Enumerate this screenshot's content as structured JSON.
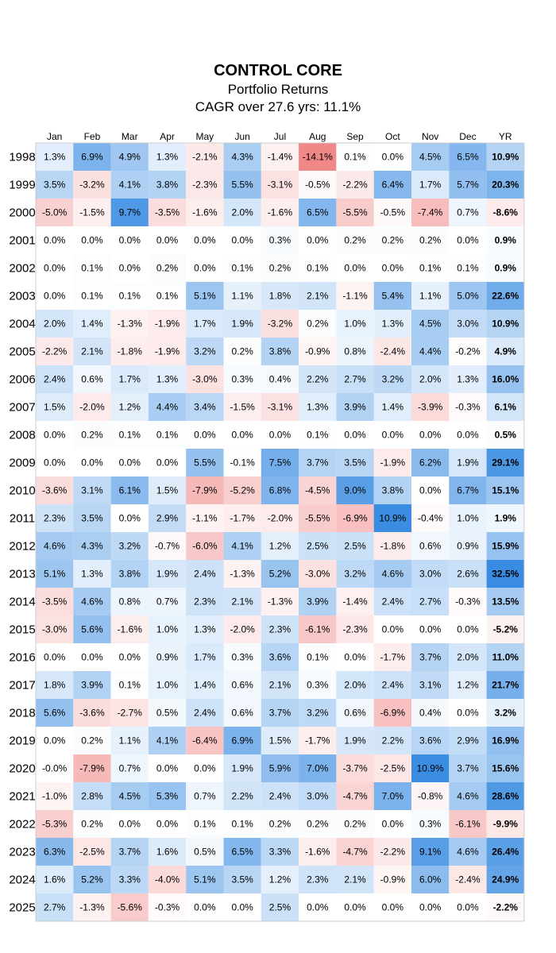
{
  "chart_data": {
    "type": "heatmap",
    "title": "CONTROL CORE",
    "subtitle": "Portfolio Returns",
    "subtitle2": "CAGR over 27.6 yrs: 11.1%",
    "columns": [
      "Jan",
      "Feb",
      "Mar",
      "Apr",
      "May",
      "Jun",
      "Jul",
      "Aug",
      "Sep",
      "Oct",
      "Nov",
      "Dec",
      "YR"
    ],
    "colors": {
      "positive": "#2f86e0",
      "negative": "#f08080",
      "border": "#cccccc"
    },
    "rows": [
      {
        "year": "1998",
        "values": [
          "1.3%",
          "6.9%",
          "4.9%",
          "1.3%",
          "-2.1%",
          "4.3%",
          "-1.4%",
          "-14.1%",
          "0.1%",
          "0.0%",
          "4.5%",
          "6.5%",
          "10.9%"
        ]
      },
      {
        "year": "1999",
        "values": [
          "3.5%",
          "-3.2%",
          "4.1%",
          "3.8%",
          "-2.3%",
          "5.5%",
          "-3.1%",
          "-0.5%",
          "-2.2%",
          "6.4%",
          "1.7%",
          "5.7%",
          "20.3%"
        ]
      },
      {
        "year": "2000",
        "values": [
          "-5.0%",
          "-1.5%",
          "9.7%",
          "-3.5%",
          "-1.6%",
          "2.0%",
          "-1.6%",
          "6.5%",
          "-5.5%",
          "-0.5%",
          "-7.4%",
          "0.7%",
          "-8.6%"
        ]
      },
      {
        "year": "2001",
        "values": [
          "0.0%",
          "0.0%",
          "0.0%",
          "0.0%",
          "0.0%",
          "0.0%",
          "0.3%",
          "0.0%",
          "0.2%",
          "0.2%",
          "0.2%",
          "0.0%",
          "0.9%"
        ]
      },
      {
        "year": "2002",
        "values": [
          "0.0%",
          "0.1%",
          "0.0%",
          "0.2%",
          "0.0%",
          "0.1%",
          "0.2%",
          "0.1%",
          "0.0%",
          "0.0%",
          "0.1%",
          "0.1%",
          "0.9%"
        ]
      },
      {
        "year": "2003",
        "values": [
          "0.0%",
          "0.1%",
          "0.1%",
          "0.1%",
          "5.1%",
          "1.1%",
          "1.8%",
          "2.1%",
          "-1.1%",
          "5.4%",
          "1.1%",
          "5.0%",
          "22.6%"
        ]
      },
      {
        "year": "2004",
        "values": [
          "2.0%",
          "1.4%",
          "-1.3%",
          "-1.9%",
          "1.7%",
          "1.9%",
          "-3.2%",
          "0.2%",
          "1.0%",
          "1.3%",
          "4.5%",
          "3.0%",
          "10.9%"
        ]
      },
      {
        "year": "2005",
        "values": [
          "-2.2%",
          "2.1%",
          "-1.8%",
          "-1.9%",
          "3.2%",
          "0.2%",
          "3.8%",
          "-0.9%",
          "0.8%",
          "-2.4%",
          "4.4%",
          "-0.2%",
          "4.9%"
        ]
      },
      {
        "year": "2006",
        "values": [
          "2.4%",
          "0.6%",
          "1.7%",
          "1.3%",
          "-3.0%",
          "0.3%",
          "0.4%",
          "2.2%",
          "2.7%",
          "3.2%",
          "2.0%",
          "1.3%",
          "16.0%"
        ]
      },
      {
        "year": "2007",
        "values": [
          "1.5%",
          "-2.0%",
          "1.2%",
          "4.4%",
          "3.4%",
          "-1.5%",
          "-3.1%",
          "1.3%",
          "3.9%",
          "1.4%",
          "-3.9%",
          "-0.3%",
          "6.1%"
        ]
      },
      {
        "year": "2008",
        "values": [
          "0.0%",
          "0.2%",
          "0.1%",
          "0.1%",
          "0.0%",
          "0.0%",
          "0.0%",
          "0.1%",
          "0.0%",
          "0.0%",
          "0.0%",
          "0.0%",
          "0.5%"
        ]
      },
      {
        "year": "2009",
        "values": [
          "0.0%",
          "0.0%",
          "0.0%",
          "0.0%",
          "5.5%",
          "-0.1%",
          "7.5%",
          "3.7%",
          "3.5%",
          "-1.9%",
          "6.2%",
          "1.9%",
          "29.1%"
        ]
      },
      {
        "year": "2010",
        "values": [
          "-3.6%",
          "3.1%",
          "6.1%",
          "1.5%",
          "-7.9%",
          "-5.2%",
          "6.8%",
          "-4.5%",
          "9.0%",
          "3.8%",
          "0.0%",
          "6.7%",
          "15.1%"
        ]
      },
      {
        "year": "2011",
        "values": [
          "2.3%",
          "3.5%",
          "0.0%",
          "2.9%",
          "-1.1%",
          "-1.7%",
          "-2.0%",
          "-5.5%",
          "-6.9%",
          "10.9%",
          "-0.4%",
          "1.0%",
          "1.9%"
        ]
      },
      {
        "year": "2012",
        "values": [
          "4.6%",
          "4.3%",
          "3.2%",
          "-0.7%",
          "-6.0%",
          "4.1%",
          "1.2%",
          "2.5%",
          "2.5%",
          "-1.8%",
          "0.6%",
          "0.9%",
          "15.9%"
        ]
      },
      {
        "year": "2013",
        "values": [
          "5.1%",
          "1.3%",
          "3.8%",
          "1.9%",
          "2.4%",
          "-1.3%",
          "5.2%",
          "-3.0%",
          "3.2%",
          "4.6%",
          "3.0%",
          "2.6%",
          "32.5%"
        ]
      },
      {
        "year": "2014",
        "values": [
          "-3.5%",
          "4.6%",
          "0.8%",
          "0.7%",
          "2.3%",
          "2.1%",
          "-1.3%",
          "3.9%",
          "-1.4%",
          "2.4%",
          "2.7%",
          "-0.3%",
          "13.5%"
        ]
      },
      {
        "year": "2015",
        "values": [
          "-3.0%",
          "5.6%",
          "-1.6%",
          "1.0%",
          "1.3%",
          "-2.0%",
          "2.3%",
          "-6.1%",
          "-2.3%",
          "0.0%",
          "0.0%",
          "0.0%",
          "-5.2%"
        ]
      },
      {
        "year": "2016",
        "values": [
          "0.0%",
          "0.0%",
          "0.0%",
          "0.9%",
          "1.7%",
          "0.3%",
          "3.6%",
          "0.1%",
          "0.0%",
          "-1.7%",
          "3.7%",
          "2.0%",
          "11.0%"
        ]
      },
      {
        "year": "2017",
        "values": [
          "1.8%",
          "3.9%",
          "0.1%",
          "1.0%",
          "1.4%",
          "0.6%",
          "2.1%",
          "0.3%",
          "2.0%",
          "2.4%",
          "3.1%",
          "1.2%",
          "21.7%"
        ]
      },
      {
        "year": "2018",
        "values": [
          "5.6%",
          "-3.6%",
          "-2.7%",
          "0.5%",
          "2.4%",
          "0.6%",
          "3.7%",
          "3.2%",
          "0.6%",
          "-6.9%",
          "0.4%",
          "0.0%",
          "3.2%"
        ]
      },
      {
        "year": "2019",
        "values": [
          "0.0%",
          "0.2%",
          "1.1%",
          "4.1%",
          "-6.4%",
          "6.9%",
          "1.5%",
          "-1.7%",
          "1.9%",
          "2.2%",
          "3.6%",
          "2.9%",
          "16.9%"
        ]
      },
      {
        "year": "2020",
        "values": [
          "-0.0%",
          "-7.9%",
          "0.7%",
          "0.0%",
          "0.0%",
          "1.9%",
          "5.9%",
          "7.0%",
          "-3.7%",
          "-2.5%",
          "10.9%",
          "3.7%",
          "15.6%"
        ]
      },
      {
        "year": "2021",
        "values": [
          "-1.0%",
          "2.8%",
          "4.5%",
          "5.3%",
          "0.7%",
          "2.2%",
          "2.4%",
          "3.0%",
          "-4.7%",
          "7.0%",
          "-0.8%",
          "4.6%",
          "28.6%"
        ]
      },
      {
        "year": "2022",
        "values": [
          "-5.3%",
          "0.2%",
          "0.0%",
          "0.0%",
          "0.1%",
          "0.1%",
          "0.2%",
          "0.2%",
          "0.2%",
          "0.0%",
          "0.3%",
          "-6.1%",
          "-9.9%"
        ]
      },
      {
        "year": "2023",
        "values": [
          "6.3%",
          "-2.5%",
          "3.7%",
          "1.6%",
          "0.5%",
          "6.5%",
          "3.3%",
          "-1.6%",
          "-4.7%",
          "-2.2%",
          "9.1%",
          "4.6%",
          "26.4%"
        ]
      },
      {
        "year": "2024",
        "values": [
          "1.6%",
          "5.2%",
          "3.3%",
          "-4.0%",
          "5.1%",
          "3.5%",
          "1.2%",
          "2.3%",
          "2.1%",
          "-0.9%",
          "6.0%",
          "-2.4%",
          "24.9%"
        ]
      },
      {
        "year": "2025",
        "values": [
          "2.7%",
          "-1.3%",
          "-5.6%",
          "-0.3%",
          "0.0%",
          "0.0%",
          "2.5%",
          "0.0%",
          "0.0%",
          "0.0%",
          "0.0%",
          "0.0%",
          "-2.2%"
        ]
      }
    ]
  }
}
